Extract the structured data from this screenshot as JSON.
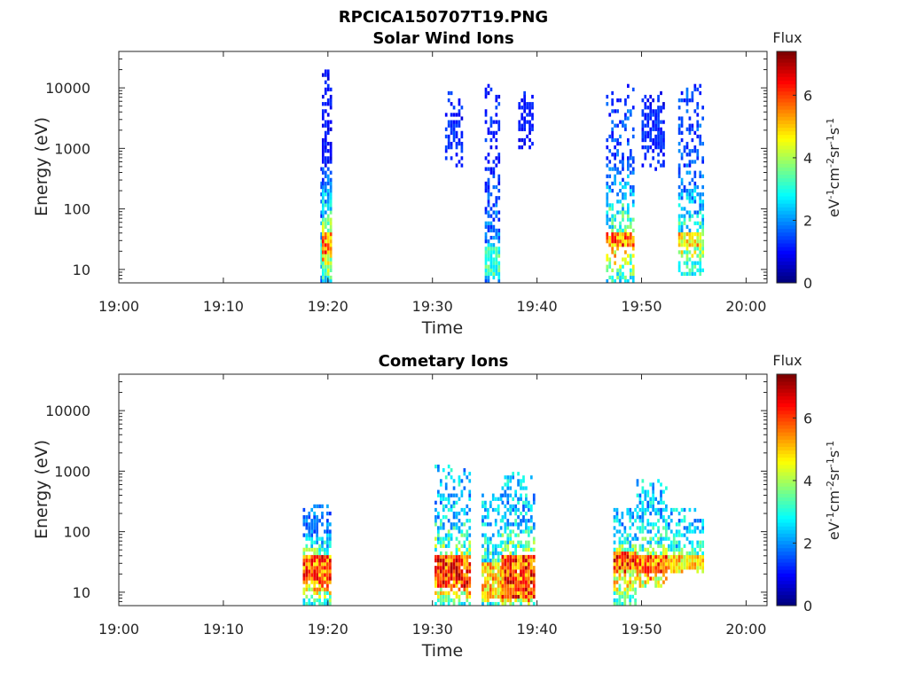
{
  "figure_title": "RPCICA150707T19.PNG",
  "chart_data": [
    {
      "type": "heatmap",
      "title": "Solar Wind Ions",
      "xlabel": "Time",
      "ylabel": "Energy (eV)",
      "x_ticks": [
        "19:00",
        "19:10",
        "19:20",
        "19:30",
        "19:40",
        "19:50",
        "20:00"
      ],
      "x_range": [
        "19:00",
        "20:02"
      ],
      "y_scale": "log",
      "y_ticks": [
        10,
        100,
        1000,
        10000
      ],
      "y_tick_labels": [
        "10",
        "100",
        "1000",
        "10000"
      ],
      "y_range": [
        6,
        40000
      ],
      "colorbar": {
        "title": "Flux",
        "label": "eV-1cm-2sr-1s-1",
        "ticks": [
          0,
          2,
          4,
          6
        ],
        "range": [
          0,
          7.4
        ],
        "colormap": "jet"
      },
      "bursts": [
        {
          "t0": 19.28,
          "t1": 19.42,
          "emin": 6,
          "emax": 600,
          "pmin": 12,
          "pmax": 30,
          "flux_peak": 3.8,
          "flux_high": 1.5,
          "density": 0.65
        },
        {
          "t0": 19.42,
          "t1": 20.3,
          "emin": 6,
          "emax": 20000,
          "pmin": 20,
          "pmax": 40,
          "flux_peak": 6.8,
          "flux_high": 1.0,
          "density": 0.88
        },
        {
          "t0": 31.2,
          "t1": 32.8,
          "emin": 400,
          "emax": 10000,
          "pmin": 1000,
          "pmax": 3000,
          "flux_peak": 1.5,
          "flux_high": 1.2,
          "density": 0.35
        },
        {
          "t0": 35.0,
          "t1": 36.5,
          "emin": 6,
          "emax": 12000,
          "pmin": 8,
          "pmax": 25,
          "flux_peak": 3.8,
          "flux_high": 1.2,
          "density": 0.55
        },
        {
          "t0": 38.2,
          "t1": 39.6,
          "emin": 1000,
          "emax": 9000,
          "pmin": 2000,
          "pmax": 6000,
          "flux_peak": 1.3,
          "flux_high": 1.1,
          "density": 0.3
        },
        {
          "t0": 46.6,
          "t1": 49.2,
          "emin": 6,
          "emax": 12000,
          "pmin": 25,
          "pmax": 40,
          "flux_peak": 6.8,
          "flux_high": 1.5,
          "density": 0.55
        },
        {
          "t0": 50.0,
          "t1": 52.2,
          "emin": 400,
          "emax": 9000,
          "pmin": 1000,
          "pmax": 5000,
          "flux_peak": 1.5,
          "flux_high": 1.2,
          "density": 0.35
        },
        {
          "t0": 53.5,
          "t1": 56.0,
          "emin": 8,
          "emax": 12000,
          "pmin": 25,
          "pmax": 40,
          "flux_peak": 5.8,
          "flux_high": 1.5,
          "density": 0.55
        }
      ]
    },
    {
      "type": "heatmap",
      "title": "Cometary Ions",
      "xlabel": "Time",
      "ylabel": "Energy (eV)",
      "x_ticks": [
        "19:00",
        "19:10",
        "19:20",
        "19:30",
        "19:40",
        "19:50",
        "20:00"
      ],
      "x_range": [
        "19:00",
        "20:02"
      ],
      "y_scale": "log",
      "y_ticks": [
        10,
        100,
        1000,
        10000
      ],
      "y_tick_labels": [
        "10",
        "100",
        "1000",
        "10000"
      ],
      "y_range": [
        6,
        40000
      ],
      "colorbar": {
        "title": "Flux",
        "label": "eV-1cm-2sr-1s-1",
        "ticks": [
          0,
          2,
          4,
          6
        ],
        "range": [
          0,
          7.4
        ],
        "colormap": "jet"
      },
      "bursts": [
        {
          "t0": 17.6,
          "t1": 20.2,
          "emin": 6,
          "emax": 280,
          "pmin": 15,
          "pmax": 40,
          "flux_peak": 7.0,
          "flux_high": 1.8,
          "density": 0.7
        },
        {
          "t0": 30.2,
          "t1": 33.5,
          "emin": 6,
          "emax": 1200,
          "pmin": 12,
          "pmax": 40,
          "flux_peak": 7.2,
          "flux_high": 2.5,
          "density": 0.6
        },
        {
          "t0": 34.7,
          "t1": 36.6,
          "emin": 6,
          "emax": 400,
          "pmin": 8,
          "pmax": 30,
          "flux_peak": 6.0,
          "flux_high": 2.5,
          "density": 0.6
        },
        {
          "t0": 36.6,
          "t1": 39.8,
          "emin": 6,
          "emax": 1000,
          "pmin": 8,
          "pmax": 40,
          "flux_peak": 7.2,
          "flux_high": 2.5,
          "density": 0.6
        },
        {
          "t0": 47.3,
          "t1": 49.5,
          "emin": 6,
          "emax": 250,
          "pmin": 25,
          "pmax": 45,
          "flux_peak": 7.2,
          "flux_high": 2.5,
          "density": 0.7
        },
        {
          "t0": 49.5,
          "t1": 52.5,
          "emin": 12,
          "emax": 700,
          "pmin": 20,
          "pmax": 40,
          "flux_peak": 6.8,
          "flux_high": 2.5,
          "density": 0.65
        },
        {
          "t0": 52.5,
          "t1": 56.0,
          "emin": 20,
          "emax": 250,
          "pmin": 25,
          "pmax": 40,
          "flux_peak": 6.0,
          "flux_high": 2.5,
          "density": 0.65
        }
      ]
    }
  ]
}
